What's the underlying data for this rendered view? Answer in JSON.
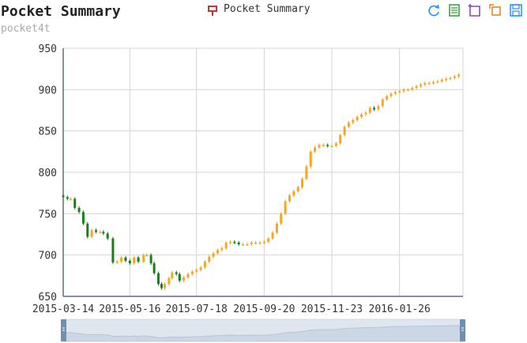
{
  "title": "Pocket Summary",
  "subtitle": "pocket4t",
  "legend": {
    "label": "Pocket Summary",
    "color": "#c23531"
  },
  "toolbox": [
    {
      "name": "refresh-icon",
      "color": "#1e90ff"
    },
    {
      "name": "data-view-icon",
      "color": "#2ca02c"
    },
    {
      "name": "magic-type-icon",
      "color": "#8e44ad"
    },
    {
      "name": "restore-icon",
      "color": "#e67e22"
    },
    {
      "name": "save-icon",
      "color": "#1e90ff"
    }
  ],
  "colors": {
    "up": "#f5a623",
    "down": "#1a7f1a",
    "axis": "#5a6e8a",
    "grid": "#d4d4d4"
  },
  "chart_data": {
    "type": "candlestick",
    "ylim": [
      650,
      950
    ],
    "yticks": [
      650,
      700,
      750,
      800,
      850,
      900,
      950
    ],
    "x_range": [
      "2015-03-14",
      "2016-03-26"
    ],
    "xticks": [
      "2015-03-14",
      "2015-05-16",
      "2015-07-18",
      "2015-09-20",
      "2015-11-23",
      "2016-01-26"
    ],
    "grid": true,
    "series": [
      {
        "name": "Pocket Summary",
        "close_points": [
          [
            "2015-03-14",
            770
          ],
          [
            "2015-03-18",
            768
          ],
          [
            "2015-03-21",
            768
          ],
          [
            "2015-03-25",
            757
          ],
          [
            "2015-03-29",
            752
          ],
          [
            "2015-04-02",
            738
          ],
          [
            "2015-04-06",
            722
          ],
          [
            "2015-04-10",
            730
          ],
          [
            "2015-04-14",
            728
          ],
          [
            "2015-04-18",
            728
          ],
          [
            "2015-04-21",
            726
          ],
          [
            "2015-04-25",
            720
          ],
          [
            "2015-04-30",
            691
          ],
          [
            "2015-05-04",
            692
          ],
          [
            "2015-05-08",
            697
          ],
          [
            "2015-05-12",
            693
          ],
          [
            "2015-05-16",
            690
          ],
          [
            "2015-05-20",
            697
          ],
          [
            "2015-05-24",
            692
          ],
          [
            "2015-05-29",
            700
          ],
          [
            "2015-06-01",
            700
          ],
          [
            "2015-06-05",
            690
          ],
          [
            "2015-06-08",
            678
          ],
          [
            "2015-06-12",
            665
          ],
          [
            "2015-06-15",
            660
          ],
          [
            "2015-06-18",
            665
          ],
          [
            "2015-06-22",
            672
          ],
          [
            "2015-06-25",
            679
          ],
          [
            "2015-06-29",
            677
          ],
          [
            "2015-07-02",
            669
          ],
          [
            "2015-07-06",
            673
          ],
          [
            "2015-07-10",
            677
          ],
          [
            "2015-07-14",
            680
          ],
          [
            "2015-07-18",
            682
          ],
          [
            "2015-07-22",
            685
          ],
          [
            "2015-07-26",
            692
          ],
          [
            "2015-07-30",
            698
          ],
          [
            "2015-08-03",
            702
          ],
          [
            "2015-08-07",
            706
          ],
          [
            "2015-08-11",
            708
          ],
          [
            "2015-08-15",
            715
          ],
          [
            "2015-08-19",
            716
          ],
          [
            "2015-08-23",
            715
          ],
          [
            "2015-08-27",
            713
          ],
          [
            "2015-08-31",
            713
          ],
          [
            "2015-09-04",
            713
          ],
          [
            "2015-09-08",
            715
          ],
          [
            "2015-09-12",
            715
          ],
          [
            "2015-09-16",
            715
          ],
          [
            "2015-09-20",
            716
          ],
          [
            "2015-09-24",
            720
          ],
          [
            "2015-09-28",
            727
          ],
          [
            "2015-10-02",
            738
          ],
          [
            "2015-10-06",
            750
          ],
          [
            "2015-10-10",
            765
          ],
          [
            "2015-10-14",
            772
          ],
          [
            "2015-10-18",
            777
          ],
          [
            "2015-10-22",
            782
          ],
          [
            "2015-10-26",
            792
          ],
          [
            "2015-10-30",
            807
          ],
          [
            "2015-11-03",
            825
          ],
          [
            "2015-11-07",
            830
          ],
          [
            "2015-11-11",
            833
          ],
          [
            "2015-11-15",
            833
          ],
          [
            "2015-11-19",
            832
          ],
          [
            "2015-11-23",
            832
          ],
          [
            "2015-11-27",
            835
          ],
          [
            "2015-12-01",
            845
          ],
          [
            "2015-12-05",
            855
          ],
          [
            "2015-12-09",
            860
          ],
          [
            "2015-12-13",
            863
          ],
          [
            "2015-12-17",
            867
          ],
          [
            "2015-12-21",
            870
          ],
          [
            "2015-12-25",
            872
          ],
          [
            "2015-12-29",
            878
          ],
          [
            "2016-01-02",
            876
          ],
          [
            "2016-01-06",
            880
          ],
          [
            "2016-01-10",
            888
          ],
          [
            "2016-01-14",
            892
          ],
          [
            "2016-01-18",
            895
          ],
          [
            "2016-01-22",
            897
          ],
          [
            "2016-01-26",
            898
          ],
          [
            "2016-01-30",
            900
          ],
          [
            "2016-02-03",
            900
          ],
          [
            "2016-02-07",
            902
          ],
          [
            "2016-02-11",
            904
          ],
          [
            "2016-02-15",
            906
          ],
          [
            "2016-02-19",
            908
          ],
          [
            "2016-02-23",
            908
          ],
          [
            "2016-02-27",
            909
          ],
          [
            "2016-03-02",
            910
          ],
          [
            "2016-03-06",
            912
          ],
          [
            "2016-03-10",
            913
          ],
          [
            "2016-03-14",
            914
          ],
          [
            "2016-03-18",
            916
          ],
          [
            "2016-03-22",
            918
          ]
        ]
      }
    ]
  },
  "data_zoom": {
    "start_percent": 0,
    "end_percent": 100,
    "handle_color": "#6f8fb0"
  }
}
